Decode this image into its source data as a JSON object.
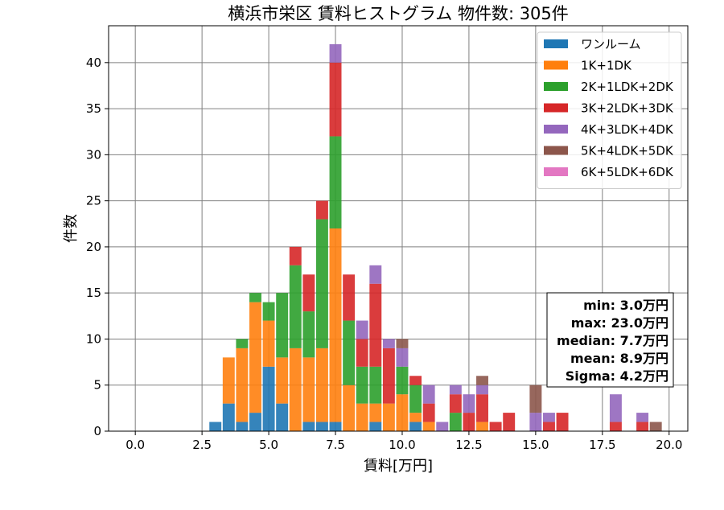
{
  "chart_data": {
    "type": "bar",
    "stacked": true,
    "title": "横浜市栄区 賃料ヒストグラム  物件数: 305件",
    "xlabel": "賃料[万円]",
    "ylabel": "件数",
    "xlim": [
      -1.0,
      20.7
    ],
    "ylim": [
      0,
      44
    ],
    "xticks": [
      "0.0",
      "2.5",
      "5.0",
      "7.5",
      "10.0",
      "12.5",
      "15.0",
      "17.5",
      "20.0"
    ],
    "xtick_values": [
      0,
      2.5,
      5,
      7.5,
      10,
      12.5,
      15,
      17.5,
      20
    ],
    "yticks": [
      "0",
      "5",
      "10",
      "15",
      "20",
      "25",
      "30",
      "35",
      "40"
    ],
    "ytick_values": [
      0,
      5,
      10,
      15,
      20,
      25,
      30,
      35,
      40
    ],
    "grid": true,
    "legend_position": "top-right",
    "bin_width": 0.5,
    "x": [
      3.0,
      3.5,
      4.0,
      4.5,
      5.0,
      5.5,
      6.0,
      6.5,
      7.0,
      7.5,
      8.0,
      8.5,
      9.0,
      9.5,
      10.0,
      10.5,
      11.0,
      11.5,
      12.0,
      12.5,
      13.0,
      13.5,
      14.0,
      15.0,
      15.5,
      16.0,
      18.0,
      19.0,
      19.5
    ],
    "series": [
      {
        "name": "ワンルーム",
        "color": "#1f77b4",
        "values": [
          1,
          3,
          1,
          2,
          7,
          3,
          0,
          1,
          1,
          1,
          0,
          0,
          1,
          0,
          0,
          1,
          0,
          0,
          0,
          0,
          0,
          0,
          0,
          0,
          0,
          0,
          0,
          0,
          0
        ]
      },
      {
        "name": "1K+1DK",
        "color": "#ff7f0e",
        "values": [
          0,
          5,
          8,
          12,
          5,
          5,
          9,
          7,
          8,
          21,
          5,
          3,
          2,
          3,
          4,
          1,
          1,
          0,
          0,
          0,
          1,
          0,
          0,
          0,
          0,
          0,
          0,
          0,
          0
        ]
      },
      {
        "name": "2K+1LDK+2DK",
        "color": "#2ca02c",
        "values": [
          0,
          0,
          1,
          1,
          2,
          7,
          9,
          5,
          14,
          10,
          7,
          4,
          4,
          0,
          3,
          3,
          0,
          0,
          2,
          0,
          0,
          0,
          0,
          0,
          0,
          0,
          0,
          0,
          0
        ]
      },
      {
        "name": "3K+2LDK+3DK",
        "color": "#d62728",
        "values": [
          0,
          0,
          0,
          0,
          0,
          0,
          2,
          4,
          2,
          8,
          5,
          3,
          9,
          6,
          0,
          1,
          2,
          0,
          2,
          2,
          3,
          1,
          2,
          0,
          1,
          2,
          1,
          1,
          0
        ]
      },
      {
        "name": "4K+3LDK+4DK",
        "color": "#9467bd",
        "values": [
          0,
          0,
          0,
          0,
          0,
          0,
          0,
          0,
          0,
          2,
          0,
          2,
          2,
          1,
          2,
          0,
          2,
          1,
          1,
          2,
          1,
          0,
          0,
          2,
          1,
          0,
          3,
          1,
          0
        ]
      },
      {
        "name": "5K+4LDK+5DK",
        "color": "#8c564b",
        "values": [
          0,
          0,
          0,
          0,
          0,
          0,
          0,
          0,
          0,
          0,
          0,
          0,
          0,
          0,
          1,
          0,
          0,
          0,
          0,
          0,
          1,
          0,
          0,
          3,
          0,
          0,
          0,
          0,
          1
        ]
      },
      {
        "name": "6K+5LDK+6DK",
        "color": "#e377c2",
        "values": [
          0,
          0,
          0,
          0,
          0,
          0,
          0,
          0,
          0,
          0,
          0,
          0,
          0,
          0,
          0,
          0,
          0,
          0,
          0,
          0,
          0,
          0,
          0,
          0,
          0,
          0,
          0,
          0,
          0
        ]
      }
    ],
    "stats_box": [
      "min: 3.0万円",
      "max: 23.0万円",
      "median: 7.7万円",
      "mean: 8.9万円",
      "Sigma: 4.2万円"
    ]
  }
}
